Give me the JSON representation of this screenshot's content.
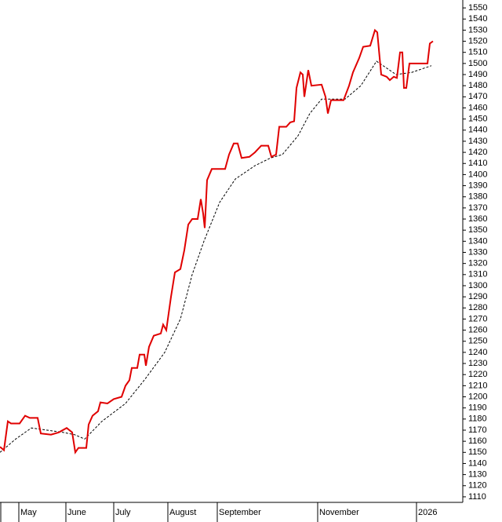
{
  "chart_data": {
    "type": "line",
    "series": [
      {
        "color": "#e00000",
        "style": "solid",
        "x": [
          0,
          5,
          10,
          14,
          25,
          32,
          38,
          48,
          52,
          65,
          75,
          85,
          92,
          96,
          100,
          110,
          113,
          118,
          125,
          128,
          137,
          145,
          155,
          160,
          165,
          168,
          175,
          178,
          184,
          186,
          190,
          196,
          205,
          208,
          212,
          218,
          223,
          230,
          235,
          240,
          245,
          252,
          256,
          259,
          261,
          264,
          270,
          287,
          292,
          298,
          303,
          308,
          318,
          325,
          333,
          342,
          346,
          352,
          356,
          365,
          370,
          375,
          378,
          383,
          386,
          388,
          393,
          397,
          410,
          415,
          418,
          422,
          438,
          445,
          450,
          458,
          463,
          472,
          478,
          481,
          486,
          493,
          497,
          502,
          506,
          510,
          513,
          515,
          518,
          522,
          545,
          548,
          552
        ],
        "values": [
          1155,
          1152,
          1178,
          1176,
          1176,
          1183,
          1181,
          1181,
          1167,
          1166,
          1168,
          1172,
          1168,
          1150,
          1154,
          1154,
          1175,
          1183,
          1187,
          1195,
          1194,
          1198,
          1200,
          1210,
          1215,
          1226,
          1226,
          1238,
          1238,
          1228,
          1245,
          1255,
          1257,
          1265,
          1260,
          1290,
          1312,
          1315,
          1332,
          1355,
          1360,
          1360,
          1378,
          1365,
          1352,
          1395,
          1405,
          1405,
          1418,
          1428,
          1428,
          1415,
          1416,
          1420,
          1426,
          1426,
          1416,
          1418,
          1443,
          1443,
          1447,
          1448,
          1478,
          1492,
          1490,
          1470,
          1494,
          1480,
          1481,
          1470,
          1455,
          1467,
          1467,
          1480,
          1492,
          1505,
          1515,
          1516,
          1530,
          1528,
          1490,
          1488,
          1485,
          1488,
          1487,
          1510,
          1510,
          1478,
          1478,
          1500,
          1500,
          1518,
          1520
        ]
      },
      {
        "color": "#000000",
        "style": "dashed",
        "x": [
          0,
          20,
          40,
          60,
          80,
          95,
          108,
          130,
          160,
          185,
          210,
          230,
          245,
          260,
          280,
          300,
          325,
          345,
          360,
          380,
          395,
          410,
          440,
          460,
          480,
          505,
          525,
          550
        ],
        "values": [
          1150,
          1162,
          1172,
          1170,
          1168,
          1166,
          1162,
          1178,
          1194,
          1216,
          1240,
          1270,
          1310,
          1340,
          1375,
          1396,
          1408,
          1415,
          1418,
          1435,
          1455,
          1468,
          1468,
          1480,
          1502,
          1490,
          1492,
          1498
        ]
      }
    ],
    "xlim": [
      0,
      590
    ],
    "xticks": [
      {
        "value": 24,
        "label": "May"
      },
      {
        "value": 84,
        "label": "June"
      },
      {
        "value": 145,
        "label": "July"
      },
      {
        "value": 214,
        "label": "August"
      },
      {
        "value": 277,
        "label": "September"
      },
      {
        "value": 405,
        "label": "November"
      },
      {
        "value": 531,
        "label": "2026"
      }
    ],
    "ylim": [
      1105,
      1555
    ],
    "yticks": [
      1110,
      1120,
      1130,
      1140,
      1150,
      1160,
      1170,
      1180,
      1190,
      1200,
      1210,
      1220,
      1230,
      1240,
      1250,
      1260,
      1270,
      1280,
      1290,
      1300,
      1310,
      1320,
      1330,
      1340,
      1350,
      1360,
      1370,
      1380,
      1390,
      1400,
      1410,
      1420,
      1430,
      1440,
      1450,
      1460,
      1470,
      1480,
      1490,
      1500,
      1510,
      1520,
      1530,
      1540,
      1550
    ],
    "y_axis_side": "right"
  }
}
